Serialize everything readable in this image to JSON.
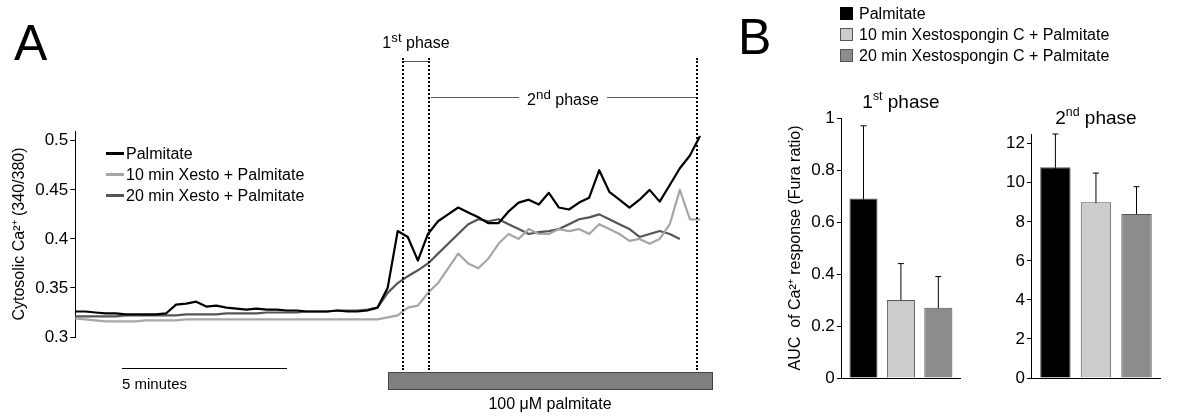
{
  "chart_data": [
    {
      "type": "line",
      "ylabel": "Cytosolic Ca²⁺ (340/380)",
      "annotations": [
        "A",
        "5 minutes",
        "1$^{st}$ phase",
        "2$^{nd}$ phase",
        "100 μM palmitate"
      ],
      "legend": "top left",
      "tick_labels": "y",
      "grid": false,
      "marker": "none",
      "line_style": "solid",
      "categories": [
        null,
        null,
        null,
        null,
        null,
        null,
        null,
        null,
        null,
        null,
        null,
        null,
        null,
        null,
        null,
        null,
        null,
        null,
        null,
        null,
        null,
        null,
        null,
        null,
        null,
        null,
        null,
        null,
        null,
        null,
        null,
        null,
        null,
        null,
        null,
        null,
        null,
        null,
        null,
        null,
        null,
        null,
        null,
        null,
        null,
        null,
        null,
        null,
        null,
        null,
        null,
        null,
        null,
        null,
        null,
        null,
        null,
        null,
        null,
        null,
        null,
        null,
        null
      ],
      "ylim": [
        0.3,
        0.51
      ],
      "yticks": [
        0.3,
        0.35,
        0.4,
        0.45,
        0.5
      ],
      "series": [
        {
          "name": "Palmitate",
          "color": "#000000",
          "values": [
            0.326,
            0.326,
            0.325,
            0.324,
            0.324,
            0.323,
            0.323,
            0.323,
            0.323,
            0.324,
            0.333,
            0.334,
            0.336,
            0.331,
            0.332,
            0.33,
            0.329,
            0.328,
            0.329,
            0.328,
            0.328,
            0.327,
            0.327,
            0.326,
            0.326,
            0.326,
            0.327,
            0.326,
            0.326,
            0.327,
            0.33,
            0.35,
            0.408,
            0.402,
            0.378,
            0.405,
            0.418,
            0.425,
            0.432,
            0.427,
            0.422,
            0.416,
            0.416,
            0.428,
            0.437,
            0.44,
            0.435,
            0.447,
            0.432,
            0.43,
            0.437,
            0.442,
            0.47,
            0.448,
            0.44,
            0.432,
            0.44,
            0.45,
            0.438,
            0.455,
            0.472,
            0.485,
            0.505
          ]
        },
        {
          "name": "10 min Xesto + Palmitate",
          "color": "#a6a6a6",
          "values": [
            0.319,
            0.318,
            0.317,
            0.316,
            0.316,
            0.316,
            0.316,
            0.317,
            0.317,
            0.317,
            0.317,
            0.318,
            0.318,
            0.318,
            0.318,
            0.318,
            0.318,
            0.318,
            0.318,
            0.318,
            0.318,
            0.318,
            0.318,
            0.318,
            0.318,
            0.318,
            0.318,
            0.318,
            0.318,
            0.318,
            0.318,
            0.32,
            0.322,
            0.33,
            0.332,
            0.345,
            0.355,
            0.37,
            0.385,
            0.375,
            0.37,
            0.38,
            0.395,
            0.405,
            0.4,
            0.41,
            0.405,
            0.405,
            0.41,
            0.408,
            0.41,
            0.405,
            0.415,
            0.41,
            0.405,
            0.398,
            0.4,
            0.395,
            0.4,
            0.415,
            0.45,
            0.42,
            0.42
          ]
        },
        {
          "name": "20 min Xesto + Palmitate",
          "color": "#555555",
          "values": [
            0.321,
            0.321,
            0.321,
            0.321,
            0.321,
            0.322,
            0.322,
            0.322,
            0.322,
            0.322,
            0.322,
            0.323,
            0.323,
            0.323,
            0.323,
            0.324,
            0.324,
            0.324,
            0.324,
            0.325,
            0.325,
            0.325,
            0.325,
            0.326,
            0.326,
            0.326,
            0.327,
            0.327,
            0.327,
            0.328,
            0.33,
            0.345,
            0.355,
            0.362,
            0.368,
            0.375,
            0.385,
            0.395,
            0.405,
            0.415,
            0.42,
            0.418,
            0.42,
            0.415,
            0.41,
            0.405,
            0.407,
            0.408,
            0.41,
            0.415,
            0.42,
            0.422,
            0.425,
            0.42,
            0.415,
            0.41,
            0.402,
            0.405,
            0.408,
            0.405,
            0.4,
            null,
            null
          ]
        }
      ]
    },
    {
      "type": "bar",
      "title": "1$^{st}$ phase",
      "ylabel": "AUC  of Ca²⁺ response (Fura ratio)",
      "annotations": [
        "B"
      ],
      "legend": "top",
      "grid": false,
      "categories": [
        null
      ],
      "ylim": [
        0,
        1
      ],
      "yticks": [
        0,
        0.2,
        0.4,
        0.6,
        0.8,
        1
      ],
      "series": [
        {
          "name": "Palmitate",
          "color": "#000000",
          "values": [
            0.69
          ],
          "errors": [
            0.28
          ]
        },
        {
          "name": "10 min Xestospongin C + Palmitate",
          "color": "#cccccc",
          "values": [
            0.3
          ],
          "errors": [
            0.14
          ]
        },
        {
          "name": "20 min Xestospongin C + Palmitate",
          "color": "#8c8c8c",
          "values": [
            0.27
          ],
          "errors": [
            0.12
          ]
        }
      ]
    },
    {
      "type": "bar",
      "title": "2$^{nd}$ phase",
      "legend": false,
      "grid": false,
      "categories": [
        null
      ],
      "ylim": [
        0,
        12.5
      ],
      "yticks": [
        0,
        2,
        4,
        6,
        8,
        10,
        12
      ],
      "series": [
        {
          "color": "#000000",
          "values": [
            10.8
          ],
          "errors": [
            1.7
          ]
        },
        {
          "color": "#cccccc",
          "values": [
            9.0
          ],
          "errors": [
            1.5
          ]
        },
        {
          "color": "#8c8c8c",
          "values": [
            8.4
          ],
          "errors": [
            1.4
          ]
        }
      ]
    }
  ]
}
